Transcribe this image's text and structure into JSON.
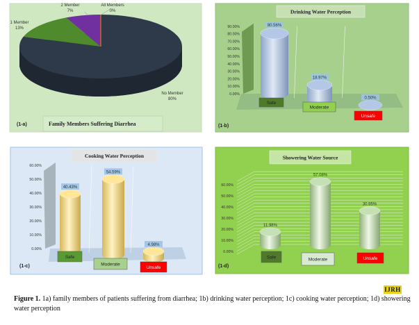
{
  "figure": {
    "caption_label": "Figure 1.",
    "caption_text": " 1a) family members of patients suffering from diarrhea; 1b) drinking water perception; 1c) cooking water perception; 1d) showering water perception",
    "logo_text": "IJRH"
  },
  "chart_data": [
    {
      "panel": "(1-a)",
      "type": "pie",
      "title": "Family Members Suffering Diarrhea",
      "slices": [
        {
          "label": "No Member",
          "value": 80,
          "display": "80%",
          "color": "#2e3a4a"
        },
        {
          "label": "1 Member",
          "value": 13,
          "display": "13%",
          "color": "#4f8a2c"
        },
        {
          "label": "2 Member",
          "value": 7,
          "display": "7%",
          "color": "#7030a0"
        },
        {
          "label": "All Members",
          "value": 0,
          "display": "0%",
          "color": "#e07b00"
        }
      ],
      "background": "#d0e8c2"
    },
    {
      "panel": "(1-b)",
      "type": "bar",
      "title": "Drinking Water Perception",
      "categories": [
        "Safe",
        "Moderate",
        "Unsafe"
      ],
      "values": [
        80.56,
        18.97,
        0.5
      ],
      "value_labels": [
        "80.56%",
        "18.97%",
        "0.50%"
      ],
      "ylim": [
        0,
        90
      ],
      "yticks": [
        "0.00%",
        "10.00%",
        "20.00%",
        "30.00%",
        "40.00%",
        "50.00%",
        "60.00%",
        "70.00%",
        "80.00%",
        "90.00%"
      ],
      "category_colors": [
        "#4e7a2a",
        "#92d050",
        "#ff0000"
      ],
      "bar_color": "#b4c7e7",
      "background": "#a8d08d"
    },
    {
      "panel": "(1-c)",
      "type": "bar",
      "title": "Cooking Water Perception",
      "categories": [
        "Safe",
        "Moderate",
        "Unsafe"
      ],
      "values": [
        40.43,
        54.59,
        4.98
      ],
      "value_labels": [
        "40.43%",
        "54.59%",
        "4.98%"
      ],
      "ylim": [
        0,
        60
      ],
      "yticks": [
        "0.00%",
        "10.00%",
        "20.00%",
        "30.00%",
        "40.00%",
        "50.00%",
        "60.00%"
      ],
      "category_colors": [
        "#5a9a32",
        "#a9d18e",
        "#ff0000"
      ],
      "bar_color": "#ffe699",
      "background": "#dce8f5"
    },
    {
      "panel": "(1-d)",
      "type": "bar",
      "title": "Showering Water Source",
      "categories": [
        "Safe",
        "Moderate",
        "Unsafe"
      ],
      "values": [
        11.98,
        57.08,
        30.95
      ],
      "value_labels": [
        "11.98%",
        "57.08%",
        "30.95%"
      ],
      "ylim": [
        0,
        60
      ],
      "yticks": [
        "0.00%",
        "10.00%",
        "20.00%",
        "30.00%",
        "40.00%",
        "50.00%",
        "60.00%"
      ],
      "category_colors": [
        "#4e7a2a",
        "#d9ead3",
        "#ff0000"
      ],
      "bar_color": "#c5e0b4",
      "background": "#92d050"
    }
  ]
}
